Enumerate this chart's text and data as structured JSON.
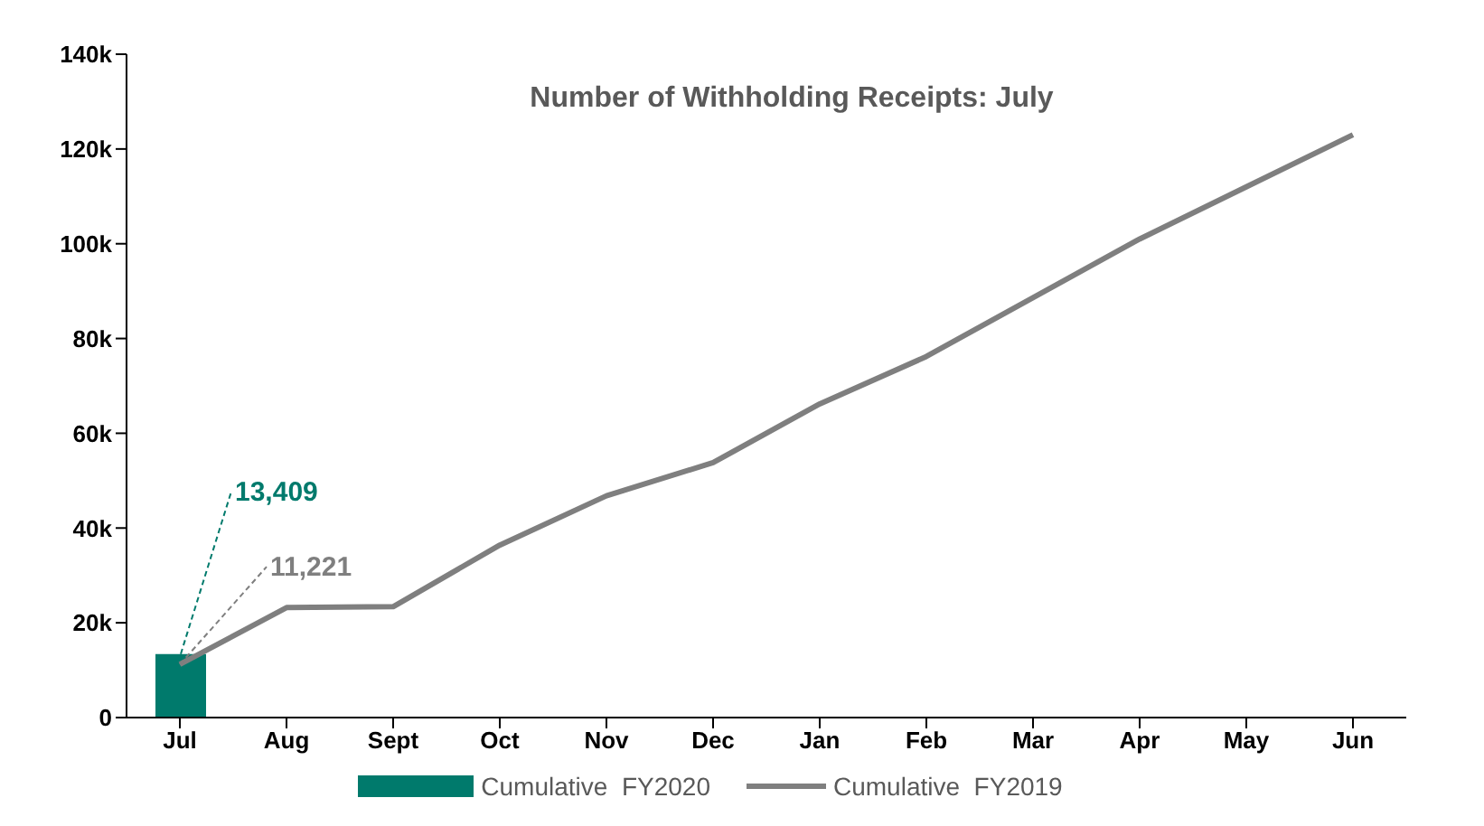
{
  "chart_data": {
    "type": "bar",
    "title": "Number of Withholding Receipts: July",
    "categories": [
      "Jul",
      "Aug",
      "Sept",
      "Oct",
      "Nov",
      "Dec",
      "Jan",
      "Feb",
      "Mar",
      "Apr",
      "May",
      "Jun"
    ],
    "series": [
      {
        "name": "Cumulative  FY2020",
        "color": "#007a6c",
        "values": [
          13409,
          null,
          null,
          null,
          null,
          null,
          null,
          null,
          null,
          null,
          null,
          null
        ],
        "value_labels": [
          "13,409",
          null,
          null,
          null,
          null,
          null,
          null,
          null,
          null,
          null,
          null,
          null
        ]
      },
      {
        "name": "Cumulative  FY2019",
        "type": "line",
        "color": "#7f7f7f",
        "values": [
          11221,
          23200,
          23400,
          36400,
          46800,
          53800,
          66200,
          76200,
          88600,
          101000,
          112000,
          123000
        ],
        "value_labels": [
          "11,221",
          null,
          null,
          null,
          null,
          null,
          null,
          null,
          null,
          null,
          null,
          null
        ]
      }
    ],
    "ylim": [
      0,
      140000
    ],
    "yticks": [
      {
        "value": 0,
        "label": "0"
      },
      {
        "value": 20000,
        "label": "20k"
      },
      {
        "value": 40000,
        "label": "40k"
      },
      {
        "value": 60000,
        "label": "60k"
      },
      {
        "value": 80000,
        "label": "80k"
      },
      {
        "value": 100000,
        "label": "100k"
      },
      {
        "value": 120000,
        "label": "120k"
      },
      {
        "value": 140000,
        "label": "140k"
      }
    ],
    "grid": false,
    "legend": "bottom",
    "marker": "none",
    "line_style": "solid"
  }
}
